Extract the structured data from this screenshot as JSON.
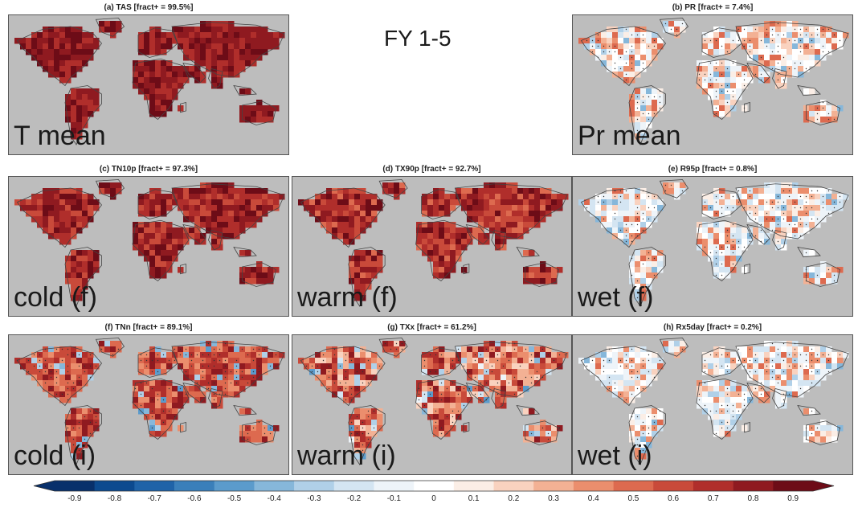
{
  "figure_label": "FY 1-5",
  "panels": [
    {
      "id": "a",
      "title": "(a) TAS [fract+ = 99.5%]",
      "overlay": "T mean",
      "fract_positive": 99.5,
      "mean_signal": 0.8,
      "spread": 0.12,
      "stipple": false
    },
    {
      "id": "b",
      "title": "(b) PR [fract+ = 7.4%]",
      "overlay": "Pr mean",
      "fract_positive": 7.4,
      "mean_signal": 0.2,
      "spread": 0.35,
      "stipple": true
    },
    {
      "id": "c",
      "title": "(c) TN10p [fract+ = 97.3%]",
      "overlay": "cold (f)",
      "fract_positive": 97.3,
      "mean_signal": 0.75,
      "spread": 0.18,
      "stipple": false
    },
    {
      "id": "d",
      "title": "(d) TX90p [fract+ = 92.7%]",
      "overlay": "warm (f)",
      "fract_positive": 92.7,
      "mean_signal": 0.7,
      "spread": 0.2,
      "stipple": false
    },
    {
      "id": "e",
      "title": "(e) R95p [fract+ = 0.8%]",
      "overlay": "wet (f)",
      "fract_positive": 0.8,
      "mean_signal": 0.15,
      "spread": 0.4,
      "stipple": true
    },
    {
      "id": "f",
      "title": "(f) TNn [fract+ = 89.1%]",
      "overlay": "cold (i)",
      "fract_positive": 89.1,
      "mean_signal": 0.6,
      "spread": 0.22,
      "stipple": true
    },
    {
      "id": "g",
      "title": "(g) TXx [fract+ = 61.2%]",
      "overlay": "warm (i)",
      "fract_positive": 61.2,
      "mean_signal": 0.5,
      "spread": 0.32,
      "stipple": true
    },
    {
      "id": "h",
      "title": "(h) Rx5day [fract+ = 0.2%]",
      "overlay": "wet (i)",
      "fract_positive": 0.2,
      "mean_signal": 0.12,
      "spread": 0.38,
      "stipple": true
    }
  ],
  "colorbar": {
    "ticks": [
      "-0.9",
      "-0.8",
      "-0.7",
      "-0.6",
      "-0.5",
      "-0.4",
      "-0.3",
      "-0.2",
      "-0.1",
      "0",
      "0.1",
      "0.2",
      "0.3",
      "0.4",
      "0.5",
      "0.6",
      "0.7",
      "0.8",
      "0.9"
    ],
    "colors": [
      "#08306b",
      "#0c4a8f",
      "#1f63a8",
      "#3a7fba",
      "#5b9bcc",
      "#86b7da",
      "#b0d0e8",
      "#d4e5f2",
      "#eef4f9",
      "#ffffff",
      "#fbeee6",
      "#f9d2bf",
      "#f3b194",
      "#eb8e6d",
      "#dd6a4f",
      "#c94a3a",
      "#b02e2b",
      "#8f1a20",
      "#6d0c17"
    ],
    "extend": "both"
  },
  "colors": {
    "ocean": "#bdbdbd",
    "border": "#555555"
  }
}
